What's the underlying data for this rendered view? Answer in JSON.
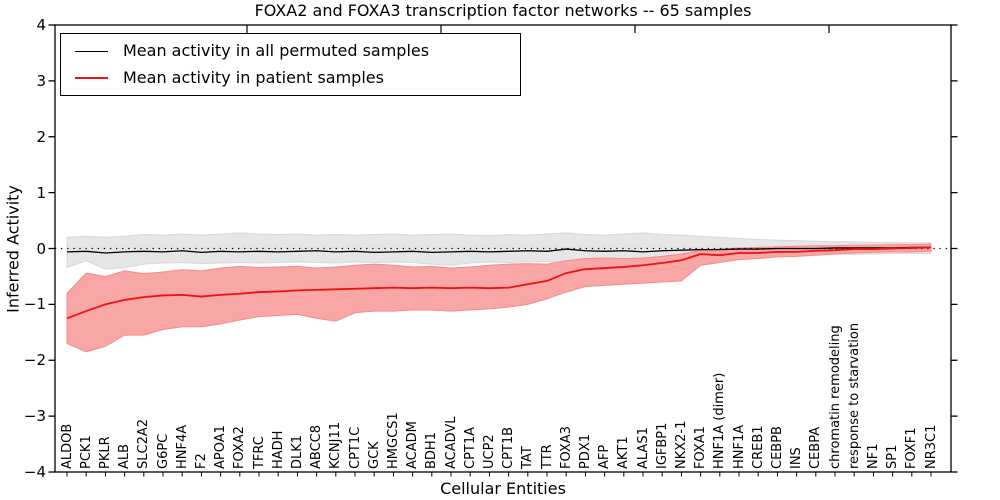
{
  "page": {
    "background": "#ffffff"
  },
  "chart_data": {
    "type": "line",
    "title": "FOXA2 and FOXA3 transcription factor networks -- 65 samples",
    "xlabel": "Cellular Entities",
    "ylabel": "Inferred Activity",
    "ylim": [
      -4,
      4
    ],
    "yticks": [
      -4,
      -3,
      -2,
      -1,
      0,
      1,
      2,
      3,
      4
    ],
    "grid": false,
    "legend": {
      "position": "upper-left",
      "entries": [
        "Mean activity in all permuted samples",
        "Mean activity in patient samples"
      ]
    },
    "reference_line": {
      "y": 0,
      "style": "dotted",
      "color": "#000000"
    },
    "categories": [
      "ALDOB",
      "PCK1",
      "PKLR",
      "ALB",
      "SLC2A2",
      "G6PC",
      "HNF4A",
      "F2",
      "APOA1",
      "FOXA2",
      "TFRC",
      "HADH",
      "DLK1",
      "ABCC8",
      "KCNJ11",
      "CPT1C",
      "GCK",
      "HMGCS1",
      "ACADM",
      "BDH1",
      "ACADVL",
      "CPT1A",
      "UCP2",
      "CPT1B",
      "TAT",
      "TTR",
      "FOXA3",
      "PDX1",
      "AFP",
      "AKT1",
      "ALAS1",
      "IGFBP1",
      "NKX2-1",
      "FOXA1",
      "HNF1A (dimer)",
      "HNF1A",
      "CREB1",
      "CEBPB",
      "INS",
      "CEBPA",
      "chromatin remodeling",
      "response to starvation",
      "NF1",
      "SP1",
      "FOXF1",
      "NR3C1"
    ],
    "series": [
      {
        "id": "permuted",
        "name": "Mean activity in all permuted samples",
        "color": "#000000",
        "linewidth": 1.3,
        "band_color": "#e6e6e6",
        "band_edge": "#d8d8d8",
        "values": [
          -0.06,
          -0.05,
          -0.08,
          -0.06,
          -0.05,
          -0.06,
          -0.04,
          -0.07,
          -0.05,
          -0.06,
          -0.05,
          -0.06,
          -0.05,
          -0.04,
          -0.06,
          -0.05,
          -0.07,
          -0.06,
          -0.05,
          -0.07,
          -0.06,
          -0.05,
          -0.06,
          -0.05,
          -0.04,
          -0.05,
          -0.01,
          -0.04,
          -0.05,
          -0.04,
          -0.06,
          -0.04,
          -0.03,
          -0.02,
          -0.02,
          -0.01,
          -0.01,
          0.0,
          0.0,
          0.0,
          0.01,
          0.01,
          0.01,
          0.01,
          0.02,
          0.02
        ],
        "band_upper": [
          0.2,
          0.22,
          0.2,
          0.22,
          0.25,
          0.24,
          0.26,
          0.24,
          0.26,
          0.28,
          0.26,
          0.25,
          0.26,
          0.24,
          0.25,
          0.24,
          0.25,
          0.26,
          0.24,
          0.25,
          0.26,
          0.24,
          0.23,
          0.25,
          0.24,
          0.26,
          0.28,
          0.25,
          0.24,
          0.26,
          0.28,
          0.25,
          0.24,
          0.22,
          0.2,
          0.18,
          0.16,
          0.15,
          0.14,
          0.13,
          0.12,
          0.12,
          0.11,
          0.11,
          0.1,
          0.1
        ],
        "band_lower": [
          -0.34,
          -0.22,
          -0.37,
          -0.34,
          -0.28,
          -0.26,
          -0.25,
          -0.27,
          -0.26,
          -0.25,
          -0.26,
          -0.25,
          -0.24,
          -0.25,
          -0.26,
          -0.24,
          -0.25,
          -0.24,
          -0.25,
          -0.28,
          -0.3,
          -0.26,
          -0.24,
          -0.25,
          -0.24,
          -0.23,
          -0.25,
          -0.22,
          -0.2,
          -0.22,
          -0.24,
          -0.2,
          -0.18,
          -0.16,
          -0.15,
          -0.14,
          -0.13,
          -0.12,
          -0.12,
          -0.11,
          -0.1,
          -0.1,
          -0.1,
          -0.09,
          -0.09,
          -0.09
        ]
      },
      {
        "id": "patient",
        "name": "Mean activity in patient samples",
        "color": "#f01010",
        "linewidth": 1.8,
        "band_color": "#f9a6a6",
        "band_edge": "#f58b8b",
        "values": [
          -1.25,
          -1.12,
          -1.0,
          -0.92,
          -0.87,
          -0.84,
          -0.83,
          -0.86,
          -0.83,
          -0.81,
          -0.78,
          -0.77,
          -0.75,
          -0.74,
          -0.73,
          -0.72,
          -0.71,
          -0.7,
          -0.71,
          -0.7,
          -0.71,
          -0.7,
          -0.71,
          -0.7,
          -0.64,
          -0.58,
          -0.44,
          -0.37,
          -0.35,
          -0.33,
          -0.3,
          -0.26,
          -0.21,
          -0.1,
          -0.12,
          -0.08,
          -0.08,
          -0.06,
          -0.06,
          -0.04,
          -0.03,
          -0.01,
          -0.01,
          0.0,
          0.01,
          0.02
        ],
        "band_upper": [
          -0.8,
          -0.44,
          -0.5,
          -0.4,
          -0.45,
          -0.42,
          -0.38,
          -0.4,
          -0.35,
          -0.32,
          -0.34,
          -0.33,
          -0.32,
          -0.35,
          -0.33,
          -0.3,
          -0.28,
          -0.3,
          -0.33,
          -0.32,
          -0.35,
          -0.33,
          -0.3,
          -0.28,
          -0.27,
          -0.28,
          -0.22,
          -0.18,
          -0.17,
          -0.18,
          -0.17,
          -0.14,
          -0.1,
          -0.03,
          -0.01,
          0.01,
          0.02,
          0.03,
          0.04,
          0.05,
          0.05,
          0.06,
          0.06,
          0.07,
          0.07,
          0.08
        ],
        "band_lower": [
          -1.7,
          -1.85,
          -1.75,
          -1.55,
          -1.55,
          -1.45,
          -1.4,
          -1.4,
          -1.35,
          -1.28,
          -1.22,
          -1.2,
          -1.18,
          -1.25,
          -1.3,
          -1.15,
          -1.12,
          -1.12,
          -1.1,
          -1.1,
          -1.12,
          -1.1,
          -1.08,
          -1.05,
          -1.0,
          -0.9,
          -0.78,
          -0.68,
          -0.66,
          -0.64,
          -0.62,
          -0.6,
          -0.58,
          -0.3,
          -0.25,
          -0.2,
          -0.18,
          -0.15,
          -0.14,
          -0.12,
          -0.1,
          -0.08,
          -0.07,
          -0.06,
          -0.06,
          -0.05
        ]
      }
    ]
  }
}
